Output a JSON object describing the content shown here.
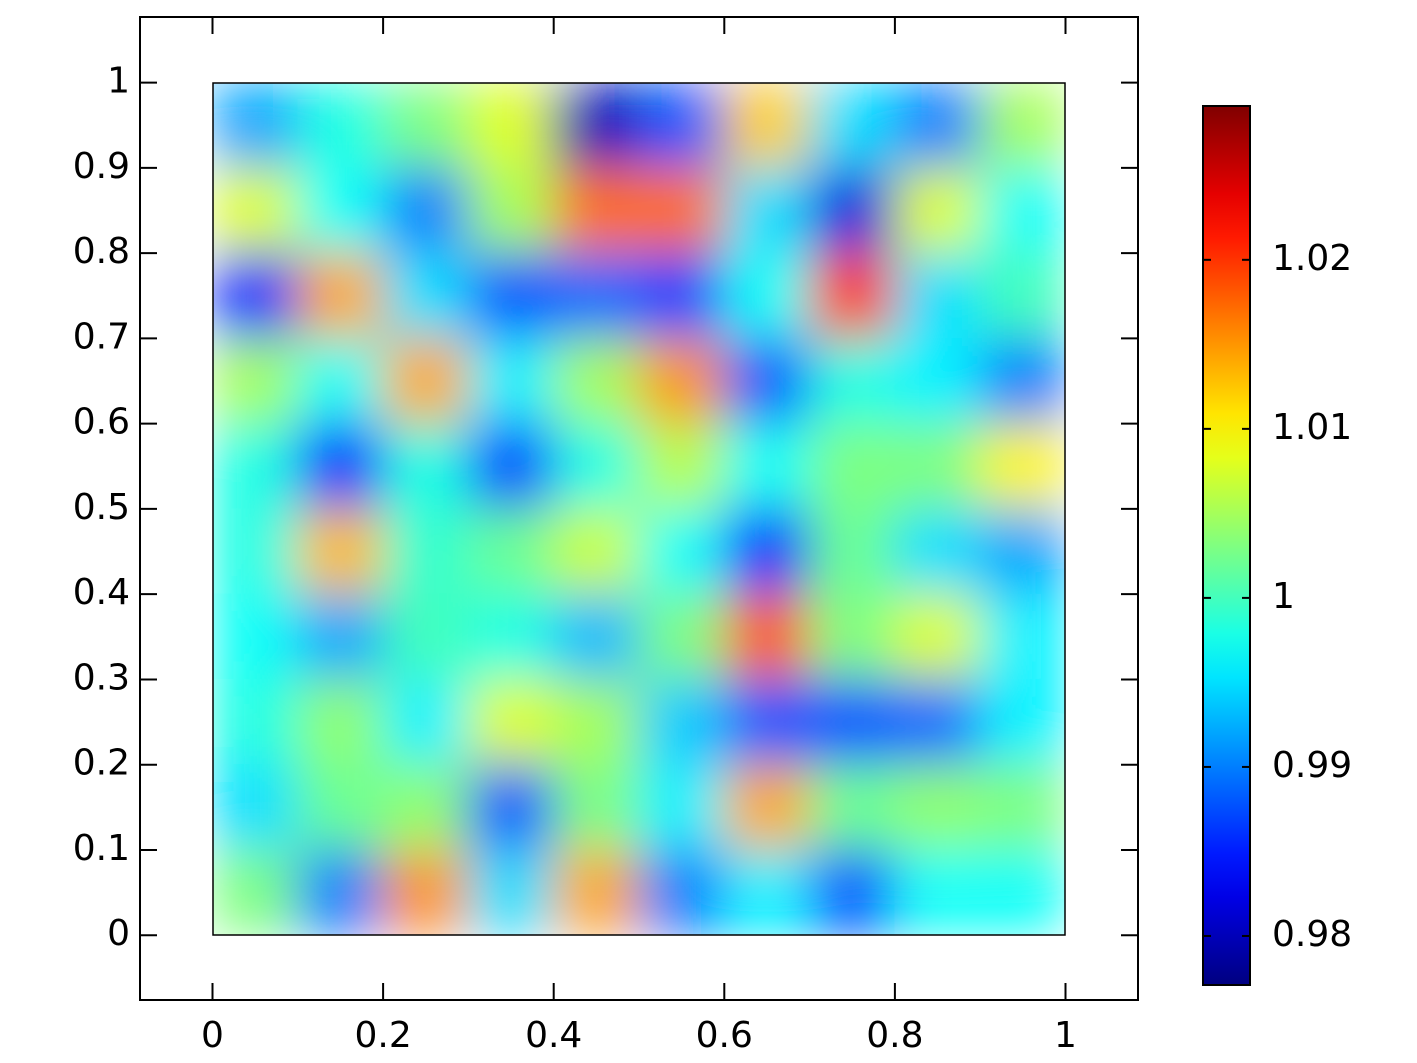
{
  "chart_data": {
    "type": "heatmap",
    "colormap": "jet",
    "x": [
      0.05,
      0.15,
      0.25,
      0.35,
      0.45,
      0.55,
      0.65,
      0.75,
      0.85,
      0.95
    ],
    "y": [
      0.95,
      0.85,
      0.75,
      0.65,
      0.55,
      0.45,
      0.35,
      0.25,
      0.15,
      0.05
    ],
    "z": [
      [
        0.992,
        0.998,
        1.003,
        1.008,
        0.98,
        0.988,
        1.012,
        0.995,
        0.99,
        1.005
      ],
      [
        1.008,
        0.997,
        0.99,
        1.005,
        1.017,
        1.017,
        0.995,
        0.982,
        1.008,
        0.997
      ],
      [
        0.985,
        1.014,
        0.995,
        0.988,
        0.989,
        0.987,
        0.997,
        1.02,
        0.995,
        1.0
      ],
      [
        1.005,
        0.997,
        1.014,
        0.996,
        1.005,
        1.015,
        0.988,
        0.998,
        0.996,
        0.99
      ],
      [
        0.998,
        0.985,
        0.998,
        0.987,
        0.998,
        1.006,
        0.997,
        1.003,
        1.003,
        1.01
      ],
      [
        0.998,
        1.013,
        0.999,
        1.002,
        1.007,
        0.997,
        0.985,
        1.002,
        0.995,
        0.992
      ],
      [
        0.997,
        0.992,
        1.0,
        0.998,
        0.993,
        1.003,
        1.018,
        1.003,
        1.008,
        0.996
      ],
      [
        0.998,
        1.004,
        0.996,
        1.008,
        1.005,
        0.994,
        0.988,
        0.988,
        0.989,
        0.996
      ],
      [
        0.995,
        1.002,
        1.004,
        0.988,
        1.003,
        0.996,
        1.014,
        1.002,
        1.004,
        1.003
      ],
      [
        1.003,
        0.99,
        1.015,
        0.995,
        1.014,
        0.99,
        0.996,
        0.988,
        0.997,
        0.997
      ]
    ],
    "xlim": [
      -0.085,
      1.085
    ],
    "ylim": [
      -0.076,
      1.077
    ],
    "xticks": [
      0,
      0.2,
      0.4,
      0.6,
      0.8,
      1
    ],
    "yticks": [
      0,
      0.1,
      0.2,
      0.3,
      0.4,
      0.5,
      0.6,
      0.7,
      0.8,
      0.9,
      1
    ],
    "clim": [
      0.9771,
      1.0291
    ],
    "cticks": [
      0.98,
      0.99,
      1,
      1.01,
      1.02
    ]
  }
}
